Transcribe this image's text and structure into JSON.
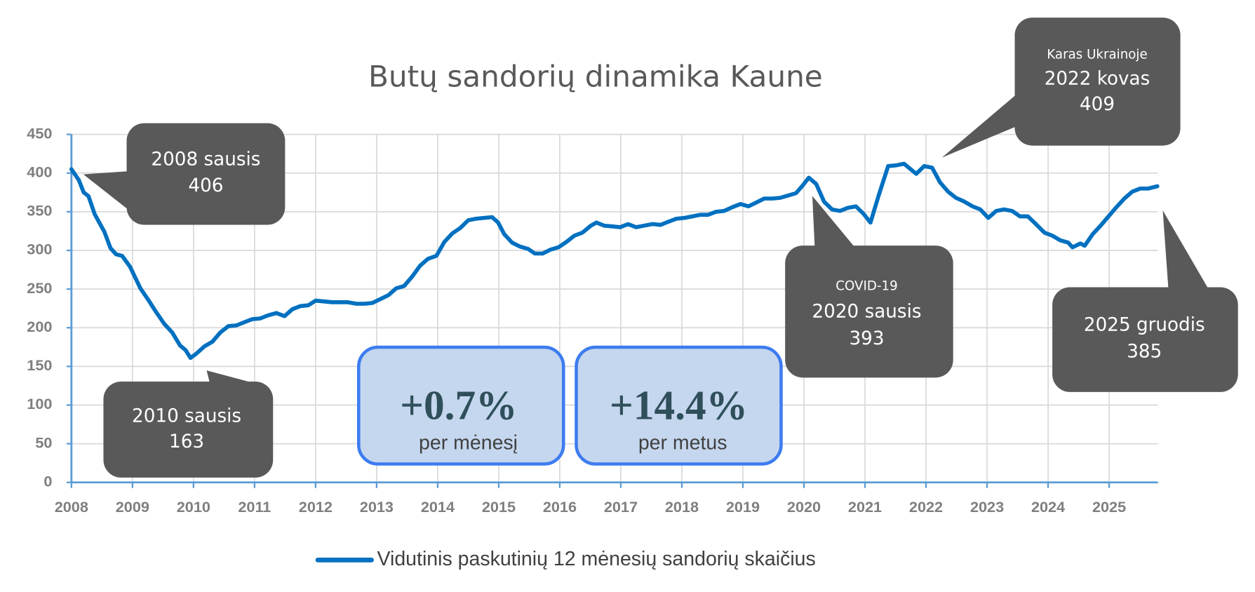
{
  "chart_data": {
    "type": "line",
    "title": "Butų sandorių dinamika Kaune",
    "x": [
      2008.0,
      2008.12,
      2008.2,
      2008.28,
      2008.38,
      2008.54,
      2008.64,
      2008.73,
      2008.83,
      2008.96,
      2009.13,
      2009.26,
      2009.39,
      2009.52,
      2009.65,
      2009.78,
      2009.87,
      2009.95,
      2010.04,
      2010.18,
      2010.31,
      2010.44,
      2010.57,
      2010.7,
      2010.83,
      2010.96,
      2011.09,
      2011.22,
      2011.36,
      2011.49,
      2011.62,
      2011.75,
      2011.88,
      2012.0,
      2012.14,
      2012.27,
      2012.4,
      2012.53,
      2012.67,
      2012.8,
      2012.93,
      2013.06,
      2013.19,
      2013.32,
      2013.45,
      2013.58,
      2013.71,
      2013.84,
      2013.98,
      2014.11,
      2014.24,
      2014.37,
      2014.5,
      2014.63,
      2014.76,
      2014.89,
      2014.99,
      2015.09,
      2015.22,
      2015.35,
      2015.48,
      2015.59,
      2015.72,
      2015.85,
      2015.98,
      2016.11,
      2016.24,
      2016.37,
      2016.51,
      2016.6,
      2016.73,
      2016.86,
      2016.99,
      2017.12,
      2017.25,
      2017.38,
      2017.52,
      2017.65,
      2017.78,
      2017.91,
      2018.04,
      2018.17,
      2018.3,
      2018.43,
      2018.56,
      2018.69,
      2018.83,
      2018.96,
      2019.09,
      2019.22,
      2019.35,
      2019.48,
      2019.61,
      2019.74,
      2019.87,
      2019.98,
      2020.08,
      2020.2,
      2020.33,
      2020.46,
      2020.59,
      2020.72,
      2020.85,
      2020.98,
      2021.09,
      2021.22,
      2021.38,
      2021.51,
      2021.64,
      2021.84,
      2021.97,
      2022.1,
      2022.23,
      2022.36,
      2022.49,
      2022.63,
      2022.76,
      2022.89,
      2023.02,
      2023.15,
      2023.28,
      2023.41,
      2023.54,
      2023.67,
      2023.8,
      2023.94,
      2024.07,
      2024.2,
      2024.33,
      2024.4,
      2024.53,
      2024.6,
      2024.73,
      2024.86,
      2024.99,
      2025.12,
      2025.25,
      2025.38,
      2025.51,
      2025.64,
      2025.79
    ],
    "series": [
      {
        "name": "Vidutinis paskutinių 12 mėnesių sandorių skaičius",
        "color": "#0070c0",
        "values": [
          405,
          391,
          375,
          370,
          347,
          324,
          303,
          295,
          293,
          279,
          251,
          236,
          220,
          205,
          194,
          177,
          171,
          161,
          166,
          176,
          182,
          194,
          202,
          203,
          207,
          211,
          212,
          216,
          219,
          215,
          224,
          228,
          229,
          235,
          234,
          233,
          233,
          233,
          231,
          231,
          232,
          237,
          242,
          251,
          254,
          266,
          280,
          289,
          293,
          311,
          322,
          329,
          339,
          341,
          342,
          343,
          336,
          321,
          310,
          305,
          302,
          296,
          296,
          301,
          304,
          311,
          319,
          323,
          332,
          336,
          332,
          331,
          330,
          334,
          330,
          332,
          334,
          333,
          337,
          341,
          342,
          344,
          346,
          346,
          350,
          351,
          356,
          360,
          357,
          362,
          367,
          367,
          368,
          371,
          374,
          384,
          394,
          386,
          363,
          353,
          351,
          355,
          357,
          347,
          336,
          370,
          409,
          410,
          412,
          399,
          409,
          407,
          388,
          376,
          368,
          363,
          357,
          353,
          342,
          351,
          353,
          351,
          344,
          344,
          334,
          323,
          319,
          313,
          310,
          304,
          309,
          306,
          321,
          332,
          344,
          356,
          367,
          376,
          380,
          380,
          383
        ]
      }
    ],
    "xlim": [
      2008,
      2025.8
    ],
    "xticks": [
      2008,
      2009,
      2010,
      2011,
      2012,
      2013,
      2014,
      2015,
      2016,
      2017,
      2018,
      2019,
      2020,
      2021,
      2022,
      2023,
      2024,
      2025
    ],
    "ylim": [
      0,
      450
    ],
    "yticks": [
      0,
      50,
      100,
      150,
      200,
      250,
      300,
      350,
      400,
      450
    ],
    "grid": true,
    "legend": "bottom",
    "annotations": [
      {
        "label": "2008 sausis",
        "value": 406
      },
      {
        "label": "2010 sausis",
        "value": 163
      },
      {
        "note": "COVID-19",
        "label": "2020 sausis",
        "value": 393
      },
      {
        "note": "Karas Ukrainoje",
        "label": "2022 kovas",
        "value": 409
      },
      {
        "label": "2025 gruodis",
        "value": 385
      }
    ],
    "stats": [
      {
        "value_label": "+0.7%",
        "caption": "per mėnesį"
      },
      {
        "value_label": "+14.4%",
        "caption": "per metus"
      }
    ]
  }
}
